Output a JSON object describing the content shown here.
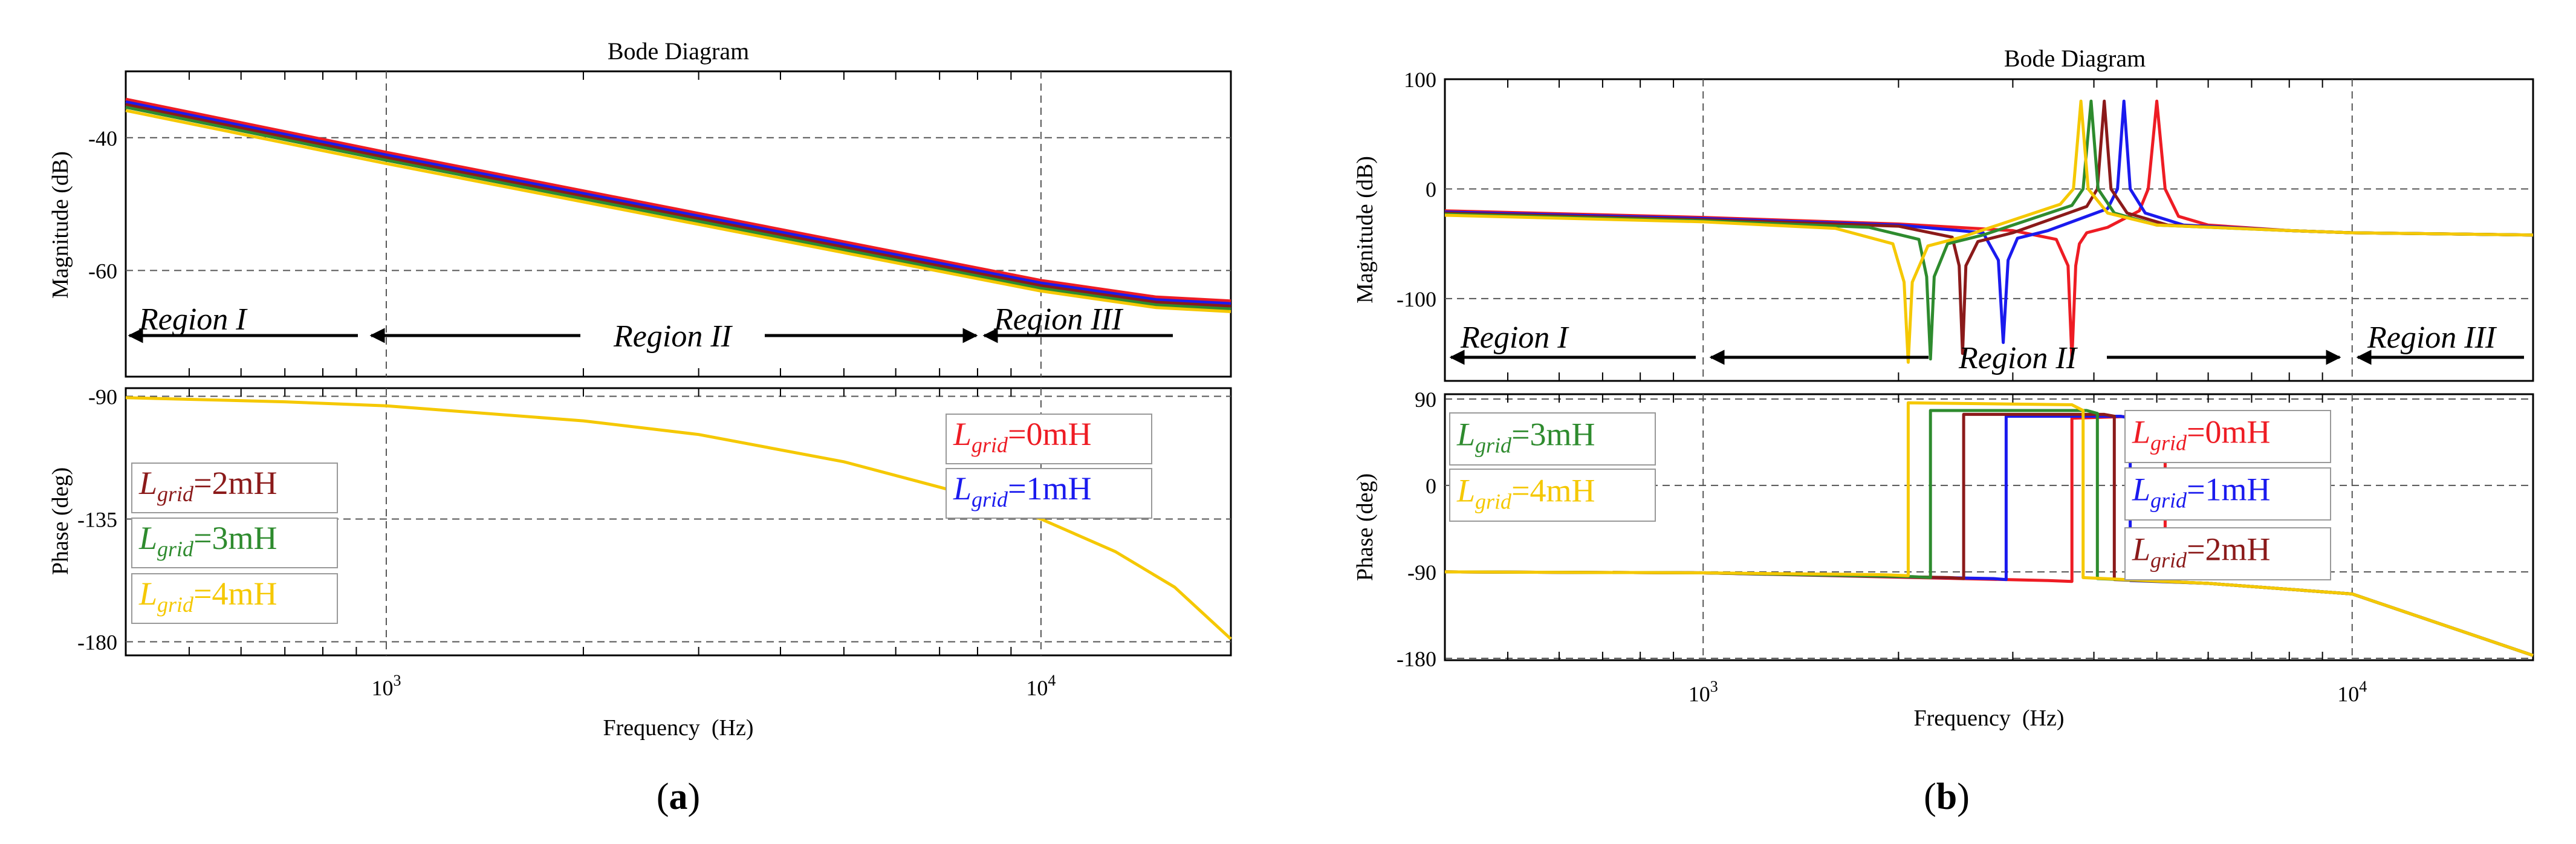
{
  "colors": {
    "red": "#ee1c24",
    "blue": "#1a1aee",
    "darkred": "#8b1a1a",
    "green": "#2e8b2e",
    "yellow": "#f5c800",
    "arrow": "#000000",
    "grid": "#555555"
  },
  "panels": [
    {
      "label": "(a)",
      "label_letter": "a",
      "chart_data": {
        "type": "line",
        "title": "Bode Diagram",
        "xlabel": "Frequency  (Hz)",
        "xscale": "log",
        "xlim": [
          400,
          19500
        ],
        "xticks": [
          {
            "base": "10",
            "exp": "3",
            "value": 1000
          },
          {
            "base": "10",
            "exp": "4",
            "value": 10000
          }
        ],
        "magnitude": {
          "ylabel": "Magnitude (dB)",
          "ylim": [
            -76,
            -30
          ],
          "yticks": [
            -40,
            -60
          ],
          "series": [
            {
              "name": "Lgrid=0mH",
              "color": "red",
              "x": [
                400,
                1000,
                10000,
                15000,
                19500
              ],
              "y": [
                -34.2,
                -42.2,
                -61.5,
                -64.0,
                -64.6
              ]
            },
            {
              "name": "Lgrid=1mH",
              "color": "blue",
              "x": [
                400,
                1000,
                10000,
                15000,
                19500
              ],
              "y": [
                -34.6,
                -42.6,
                -61.9,
                -64.4,
                -65.0
              ]
            },
            {
              "name": "Lgrid=2mH",
              "color": "darkred",
              "x": [
                400,
                1000,
                10000,
                15000,
                19500
              ],
              "y": [
                -35.0,
                -43.0,
                -62.3,
                -64.8,
                -65.4
              ]
            },
            {
              "name": "Lgrid=3mH",
              "color": "green",
              "x": [
                400,
                1000,
                10000,
                15000,
                19500
              ],
              "y": [
                -35.4,
                -43.4,
                -62.7,
                -65.2,
                -65.8
              ]
            },
            {
              "name": "Lgrid=4mH",
              "color": "yellow",
              "x": [
                400,
                1000,
                10000,
                15000,
                19500
              ],
              "y": [
                -35.9,
                -43.9,
                -63.1,
                -65.6,
                -66.2
              ]
            }
          ]
        },
        "phase": {
          "ylabel": "Phase (deg)",
          "ylim": [
            -185,
            -87
          ],
          "yticks": [
            -90,
            -135,
            -180
          ],
          "series": [
            {
              "name": "Lgrid=4mH",
              "color": "yellow",
              "x": [
                400,
                700,
                1000,
                2000,
                3000,
                5000,
                8000,
                10000,
                13000,
                16000,
                19500
              ],
              "y": [
                -90.5,
                -92,
                -93.5,
                -99,
                -104,
                -114,
                -127,
                -135,
                -147,
                -160,
                -179
              ]
            }
          ]
        },
        "regions": [
          {
            "label": "Region I",
            "from": 400,
            "to": 1000
          },
          {
            "label": "Region II",
            "from": 1000,
            "to": 10000
          },
          {
            "label": "Region III",
            "from": 10000,
            "to": 19500
          }
        ],
        "legend": [
          {
            "sym": "L",
            "sub": "grid",
            "val": "=0mH",
            "color": "red",
            "placement": "right"
          },
          {
            "sym": "L",
            "sub": "grid",
            "val": "=1mH",
            "color": "blue",
            "placement": "right"
          },
          {
            "sym": "L",
            "sub": "grid",
            "val": "=2mH",
            "color": "darkred",
            "placement": "left"
          },
          {
            "sym": "L",
            "sub": "grid",
            "val": "=3mH",
            "color": "green",
            "placement": "left"
          },
          {
            "sym": "L",
            "sub": "grid",
            "val": "=4mH",
            "color": "yellow",
            "placement": "left"
          }
        ]
      }
    },
    {
      "label": "(b)",
      "label_letter": "b",
      "chart_data": {
        "type": "line",
        "title": "Bode Diagram",
        "xlabel": "Frequency  (Hz)",
        "xscale": "log",
        "xlim": [
          400,
          19000
        ],
        "xticks": [
          {
            "base": "10",
            "exp": "3",
            "value": 1000
          },
          {
            "base": "10",
            "exp": "4",
            "value": 10000
          }
        ],
        "magnitude": {
          "ylabel": "Magnitude (dB)",
          "ylim": [
            -175,
            100
          ],
          "yticks": [
            100,
            0,
            -100
          ],
          "series": [
            {
              "name": "Lgrid=0mH",
              "color": "red",
              "x": [
                400,
                1000,
                2000,
                3000,
                3500,
                3650,
                3700,
                3750,
                3800,
                3900,
                4200,
                4700,
                4850,
                5000,
                5150,
                5400,
                6000,
                8000,
                10000,
                19000
              ],
              "y": [
                -20,
                -26,
                -32,
                -38,
                -46,
                -70,
                -155,
                -70,
                -50,
                -40,
                -35,
                -20,
                0,
                80,
                0,
                -25,
                -33,
                -38,
                -40,
                -42
              ]
            },
            {
              "name": "Lgrid=1mH",
              "color": "blue",
              "x": [
                400,
                1000,
                2000,
                2700,
                2850,
                2900,
                2950,
                3050,
                3400,
                4200,
                4350,
                4450,
                4550,
                4800,
                5500,
                8000,
                10000,
                19000
              ],
              "y": [
                -21,
                -27,
                -33,
                -40,
                -65,
                -140,
                -65,
                -45,
                -38,
                -18,
                0,
                80,
                0,
                -22,
                -33,
                -38,
                -40,
                -42
              ]
            },
            {
              "name": "Lgrid=2mH",
              "color": "darkred",
              "x": [
                400,
                1000,
                2000,
                2420,
                2480,
                2510,
                2540,
                2650,
                3000,
                3900,
                4050,
                4150,
                4250,
                4500,
                5200,
                8000,
                10000,
                19000
              ],
              "y": [
                -22,
                -28,
                -34,
                -44,
                -70,
                -150,
                -70,
                -48,
                -40,
                -16,
                0,
                80,
                0,
                -22,
                -33,
                -38,
                -40,
                -42
              ]
            },
            {
              "name": "Lgrid=3mH",
              "color": "green",
              "x": [
                400,
                1000,
                1800,
                2150,
                2210,
                2240,
                2270,
                2380,
                2700,
                3700,
                3850,
                3960,
                4060,
                4300,
                5000,
                8000,
                10000,
                19000
              ],
              "y": [
                -23,
                -29,
                -35,
                -46,
                -80,
                -155,
                -80,
                -50,
                -42,
                -15,
                0,
                80,
                0,
                -22,
                -33,
                -38,
                -40,
                -42
              ]
            },
            {
              "name": "Lgrid=4mH",
              "color": "yellow",
              "x": [
                400,
                1000,
                1600,
                1960,
                2040,
                2070,
                2100,
                2220,
                2500,
                3550,
                3720,
                3820,
                3920,
                4200,
                5000,
                8000,
                10000,
                19000
              ],
              "y": [
                -24,
                -30,
                -36,
                -50,
                -85,
                -158,
                -85,
                -52,
                -44,
                -14,
                0,
                80,
                0,
                -22,
                -33,
                -38,
                -40,
                -42
              ]
            }
          ]
        },
        "phase": {
          "ylabel": "Phase (deg)",
          "ylim": [
            -182,
            95
          ],
          "yticks": [
            90,
            0,
            -90,
            -180
          ],
          "series": [
            {
              "name": "Lgrid=0mH",
              "color": "red",
              "x": [
                400,
                1000,
                3400,
                3700,
                3700,
                4650,
                5150,
                5150,
                6000,
                10000,
                19000
              ],
              "y": [
                -90,
                -91,
                -99,
                -100,
                70,
                72,
                70,
                -100,
                -102,
                -113,
                -177
              ]
            },
            {
              "name": "Lgrid=1mH",
              "color": "blue",
              "x": [
                400,
                1000,
                2800,
                2930,
                2930,
                4400,
                4550,
                4550,
                6000,
                10000,
                19000
              ],
              "y": [
                -90,
                -91,
                -97,
                -98,
                72,
                72,
                70,
                -99,
                -102,
                -113,
                -177
              ]
            },
            {
              "name": "Lgrid=2mH",
              "color": "darkred",
              "x": [
                400,
                1000,
                2400,
                2520,
                2520,
                4150,
                4300,
                4300,
                6000,
                10000,
                19000
              ],
              "y": [
                -90,
                -91,
                -96,
                -97,
                74,
                74,
                72,
                -98,
                -102,
                -113,
                -177
              ]
            },
            {
              "name": "Lgrid=3mH",
              "color": "green",
              "x": [
                400,
                1000,
                2100,
                2240,
                2240,
                3900,
                4050,
                4050,
                6000,
                10000,
                19000
              ],
              "y": [
                -90,
                -91,
                -95,
                -96,
                78,
                78,
                75,
                -97,
                -102,
                -113,
                -177
              ]
            },
            {
              "name": "Lgrid=4mH",
              "color": "yellow",
              "x": [
                400,
                1000,
                1900,
                2070,
                2070,
                3700,
                3850,
                3850,
                6000,
                10000,
                19000
              ],
              "y": [
                -90,
                -91,
                -93,
                -94,
                86,
                84,
                78,
                -96,
                -102,
                -113,
                -177
              ]
            }
          ]
        },
        "regions": [
          {
            "label": "Region I",
            "from": 400,
            "to": 1000
          },
          {
            "label": "Region II",
            "from": 1000,
            "to": 10000
          },
          {
            "label": "Region III",
            "from": 10000,
            "to": 19000
          }
        ],
        "legend": [
          {
            "sym": "L",
            "sub": "grid",
            "val": "=0mH",
            "color": "red",
            "placement": "right"
          },
          {
            "sym": "L",
            "sub": "grid",
            "val": "=1mH",
            "color": "blue",
            "placement": "right"
          },
          {
            "sym": "L",
            "sub": "grid",
            "val": "=2mH",
            "color": "darkred",
            "placement": "right"
          },
          {
            "sym": "L",
            "sub": "grid",
            "val": "=3mH",
            "color": "green",
            "placement": "left"
          },
          {
            "sym": "L",
            "sub": "grid",
            "val": "=4mH",
            "color": "yellow",
            "placement": "left"
          }
        ]
      }
    }
  ]
}
